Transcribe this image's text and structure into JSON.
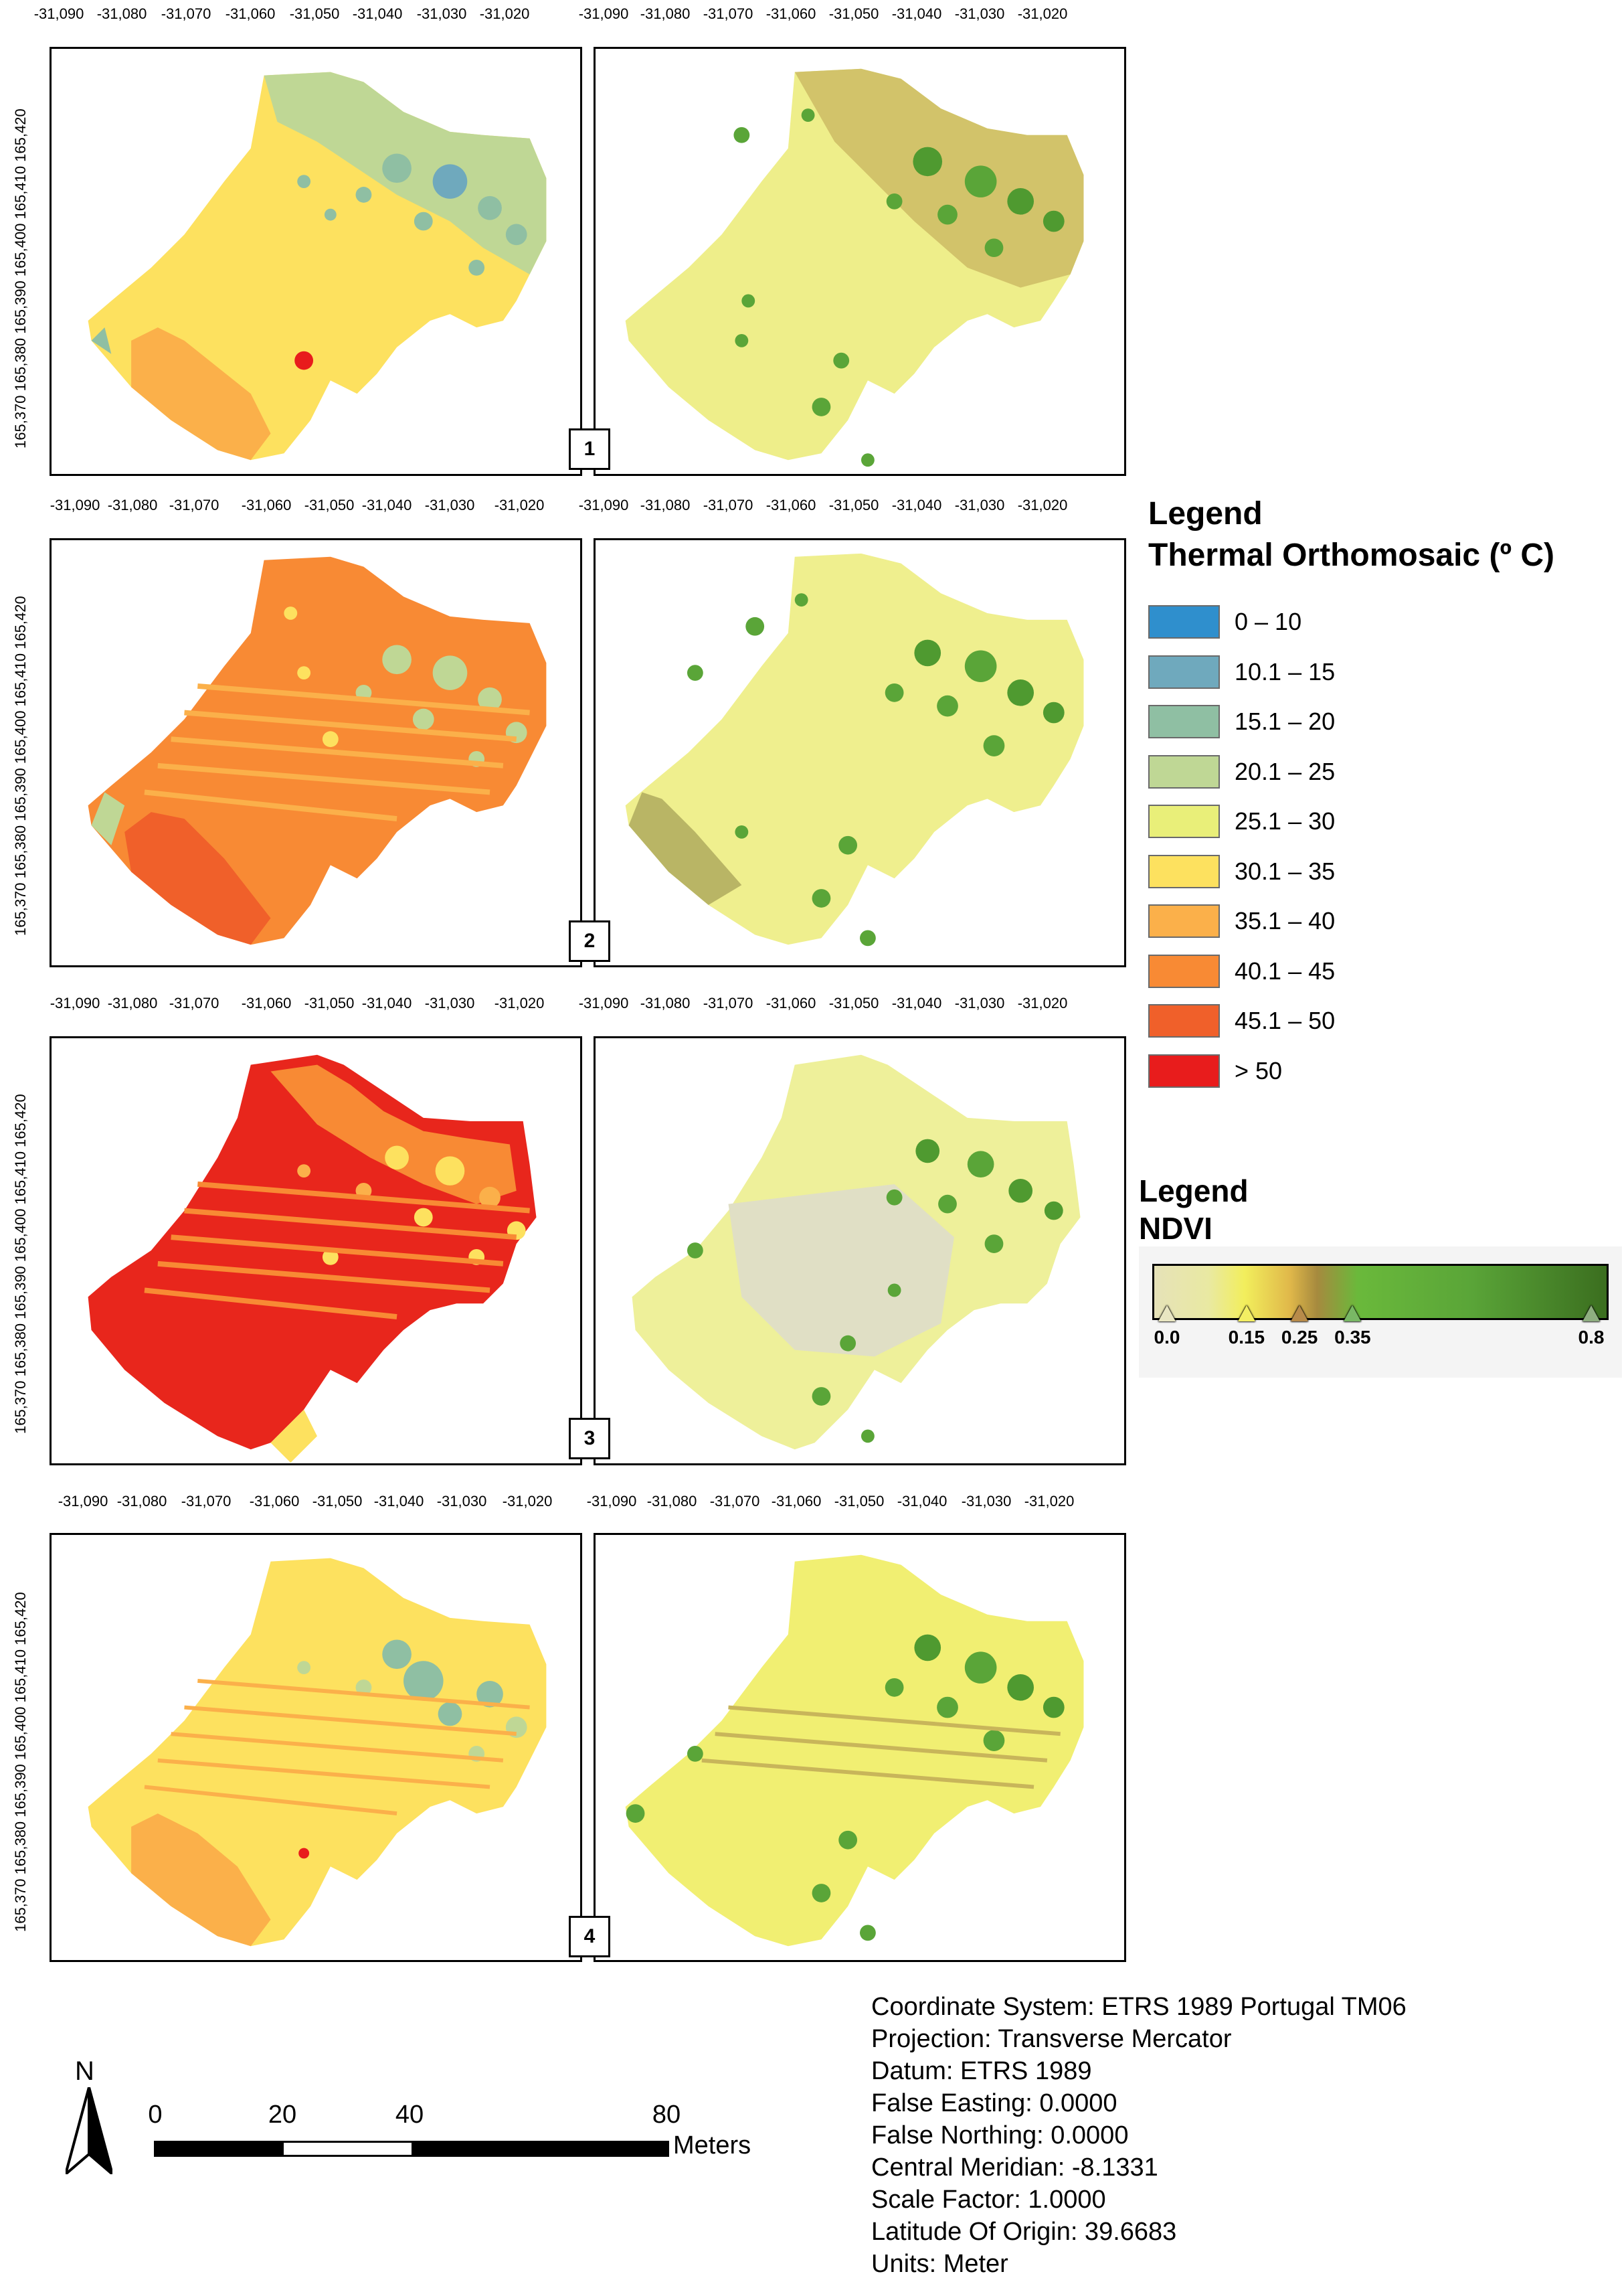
{
  "x_ticks": [
    "-31,090",
    "-31,080",
    "-31,070",
    "-31,060",
    "-31,050",
    "-31,040",
    "-31,030",
    "-31,020"
  ],
  "y_ticks_text": "165,370 165,380 165,390 165,400 165,410 165,420",
  "panels": [
    {
      "number": "1"
    },
    {
      "number": "2"
    },
    {
      "number": "3"
    },
    {
      "number": "4"
    }
  ],
  "thermal_legend": {
    "title": "Legend",
    "subtitle": "Thermal Orthomosaic (º C)",
    "classes": [
      {
        "label": "0 – 10",
        "color": "#2f8fcd"
      },
      {
        "label": "10.1 – 15",
        "color": "#6fa9bd"
      },
      {
        "label": "15.1 – 20",
        "color": "#8fbfa3"
      },
      {
        "label": "20.1 – 25",
        "color": "#bfd795"
      },
      {
        "label": "25.1 – 30",
        "color": "#e9ef79"
      },
      {
        "label": "30.1 – 35",
        "color": "#fde15f"
      },
      {
        "label": "35.1 – 40",
        "color": "#fbb04a"
      },
      {
        "label": "40.1 – 45",
        "color": "#f88a34"
      },
      {
        "label": "45.1 – 50",
        "color": "#f0602a"
      },
      {
        "label": "> 50",
        "color": "#e81c1c"
      }
    ]
  },
  "ndvi_legend": {
    "title": "Legend",
    "subtitle": "NDVI",
    "ticks": [
      {
        "label": "0.0",
        "value": 0.0,
        "marker_color": "#e9e6c2"
      },
      {
        "label": "0.15",
        "value": 0.15,
        "marker_color": "#f3ee63"
      },
      {
        "label": "0.25",
        "value": 0.25,
        "marker_color": "#b88b4a"
      },
      {
        "label": "0.35",
        "value": 0.35,
        "marker_color": "#79b865"
      },
      {
        "label": "0.8",
        "value": 0.8,
        "marker_color": "#8fae80"
      }
    ]
  },
  "north_arrow": {
    "label": "N"
  },
  "scale_bar": {
    "labels": [
      "0",
      "20",
      "40",
      "80"
    ],
    "unit": "Meters"
  },
  "projection_info": [
    "Coordinate System: ETRS 1989 Portugal TM06",
    "Projection: Transverse Mercator",
    "Datum: ETRS 1989",
    "False Easting: 0.0000",
    "False Northing: 0.0000",
    "Central Meridian: -8.1331",
    "Scale Factor: 1.0000",
    "Latitude Of Origin: 39.6683",
    "Units: Meter"
  ]
}
